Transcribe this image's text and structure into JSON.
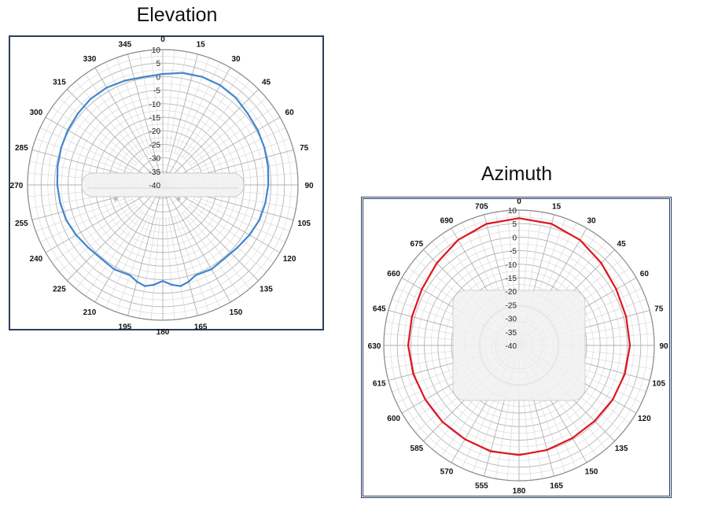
{
  "chart_data": [
    {
      "type": "polar",
      "title": "Elevation",
      "angle_unit": "degrees",
      "angle_ticks": [
        0,
        15,
        30,
        45,
        60,
        75,
        90,
        105,
        120,
        135,
        150,
        165,
        180,
        195,
        210,
        225,
        240,
        255,
        270,
        285,
        300,
        315,
        330,
        345
      ],
      "radial_ticks": [
        10,
        5,
        0,
        -5,
        -10,
        -15,
        -20,
        -25,
        -30,
        -35,
        -40
      ],
      "radial_range": [
        -40,
        10
      ],
      "grid": true,
      "series": [
        {
          "color": "#3f86cf",
          "angles": [
            0,
            10,
            20,
            30,
            40,
            50,
            60,
            70,
            80,
            90,
            100,
            110,
            120,
            130,
            140,
            150,
            160,
            165,
            170,
            175,
            180,
            185,
            190,
            195,
            200,
            210,
            220,
            230,
            240,
            250,
            260,
            270,
            280,
            290,
            300,
            310,
            320,
            330,
            340,
            350
          ],
          "values": [
            1,
            2,
            2.5,
            2.5,
            2,
            1,
            0.5,
            0,
            -0.5,
            -1,
            -1.5,
            -2,
            -3,
            -4,
            -4.5,
            -4,
            -4.5,
            -3,
            -2,
            -3,
            -4.5,
            -3,
            -2,
            -3,
            -4.5,
            -4,
            -4.5,
            -4,
            -3,
            -2,
            -1.5,
            -1,
            -0.5,
            0,
            0.5,
            1,
            1.5,
            1.5,
            1,
            0.5
          ]
        }
      ]
    },
    {
      "type": "polar",
      "title": "Azimuth",
      "angle_unit": "degrees",
      "angle_ticks": [
        0,
        15,
        30,
        45,
        60,
        75,
        90,
        105,
        120,
        135,
        150,
        165,
        180,
        555,
        570,
        585,
        600,
        615,
        630,
        645,
        660,
        675,
        690,
        705
      ],
      "radial_ticks": [
        10,
        5,
        0,
        -5,
        -10,
        -15,
        -20,
        -25,
        -30,
        -35,
        -40
      ],
      "radial_range": [
        -40,
        10
      ],
      "grid": true,
      "series": [
        {
          "color": "#e0141c",
          "angles": [
            0,
            15,
            30,
            45,
            60,
            75,
            90,
            105,
            120,
            135,
            150,
            165,
            180,
            195,
            210,
            225,
            240,
            255,
            270,
            285,
            300,
            315,
            330,
            345
          ],
          "values": [
            7,
            6.5,
            5,
            3,
            1.5,
            1,
            1,
            0.5,
            0,
            -0.5,
            -0.5,
            0,
            0.5,
            0.5,
            0,
            0,
            0,
            0.5,
            1,
            1,
            1.5,
            3,
            5,
            6.5
          ]
        }
      ]
    }
  ]
}
